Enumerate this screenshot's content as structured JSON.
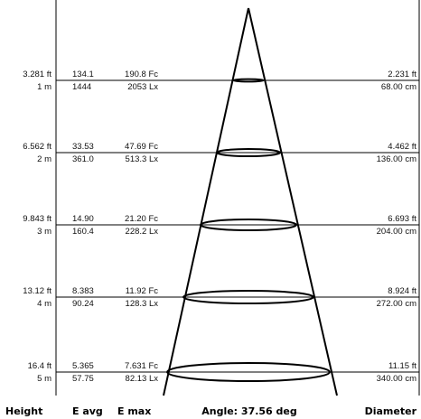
{
  "footer": {
    "height": "Height",
    "eavg": "E avg",
    "emax": "E max",
    "angle": "Angle: 37.56 deg",
    "diameter": "Diameter"
  },
  "rows": [
    {
      "h_ft": "3.281 ft",
      "h_m": "1 m",
      "eavg_fc": "134.1",
      "emax_fc": "190.8 Fc",
      "eavg_lx": "1444",
      "emax_lx": "2053 Lx",
      "d_ft": "2.231 ft",
      "d_cm": "68.00 cm"
    },
    {
      "h_ft": "6.562 ft",
      "h_m": "2 m",
      "eavg_fc": "33.53",
      "emax_fc": "47.69 Fc",
      "eavg_lx": "361.0",
      "emax_lx": "513.3 Lx",
      "d_ft": "4.462 ft",
      "d_cm": "136.00 cm"
    },
    {
      "h_ft": "9.843 ft",
      "h_m": "3 m",
      "eavg_fc": "14.90",
      "emax_fc": "21.20 Fc",
      "eavg_lx": "160.4",
      "emax_lx": "228.2 Lx",
      "d_ft": "6.693 ft",
      "d_cm": "204.00 cm"
    },
    {
      "h_ft": "13.12 ft",
      "h_m": "4 m",
      "eavg_fc": "8.383",
      "emax_fc": "11.92 Fc",
      "eavg_lx": "90.24",
      "emax_lx": "128.3 Lx",
      "d_ft": "8.924 ft",
      "d_cm": "272.00 cm"
    },
    {
      "h_ft": "16.4 ft",
      "h_m": "5 m",
      "eavg_fc": "5.365",
      "emax_fc": "7.631 Fc",
      "eavg_lx": "57.75",
      "emax_lx": "82.13 Lx",
      "d_ft": "11.15 ft",
      "d_cm": "340.00 cm"
    }
  ]
}
